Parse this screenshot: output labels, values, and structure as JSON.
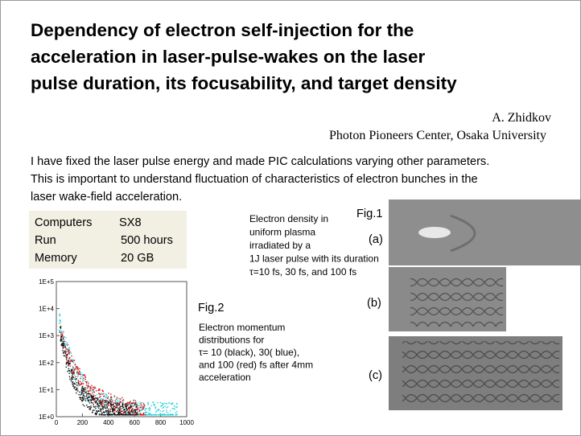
{
  "title": {
    "lines": [
      "Dependency of electron self-injection for the",
      "acceleration in laser-pulse-wakes on the laser",
      "pulse duration, its focusability, and target density"
    ]
  },
  "author": "A.  Zhidkov",
  "affiliation": "Photon Pioneers Center, Osaka University",
  "body": {
    "lines": [
      "I have fixed the laser pulse energy and made PIC calculations varying other parameters.",
      "This is important to understand fluctuation of characteristics of electron bunches in the",
      "laser wake-field acceleration."
    ]
  },
  "table": {
    "rows": [
      [
        "Computers",
        "SX8"
      ],
      [
        "Run",
        "500 hours"
      ],
      [
        "Memory",
        "20  GB"
      ]
    ]
  },
  "fig1": {
    "label": "Fig.1",
    "caption": [
      "Electron density in",
      "uniform plasma",
      "irradiated by a",
      "1J laser pulse with its duration",
      "τ=10 fs, 30 fs, and 100 fs"
    ],
    "panels": [
      "(a)",
      "(b)",
      "(c)"
    ]
  },
  "fig2": {
    "label": "Fig.2",
    "caption": [
      "Electron momentum",
      "distributions for",
      "τ= 10 (black), 30( blue),",
      "and 100 (red) fs after 4mm",
      "acceleration"
    ],
    "plot": {
      "yscale": "log",
      "ylim": [
        1,
        100000
      ],
      "yticks": [
        {
          "value": 1,
          "label": "1E+0"
        },
        {
          "value": 10,
          "label": "1E+1"
        },
        {
          "value": 100,
          "label": "1E+2"
        },
        {
          "value": 1000,
          "label": "1E+3"
        },
        {
          "value": 10000,
          "label": "1E+4"
        },
        {
          "value": 100000,
          "label": "1E+5"
        }
      ],
      "xlim": [
        0,
        1000
      ],
      "xticks": [
        0,
        200,
        400,
        600,
        800,
        1000
      ]
    }
  }
}
